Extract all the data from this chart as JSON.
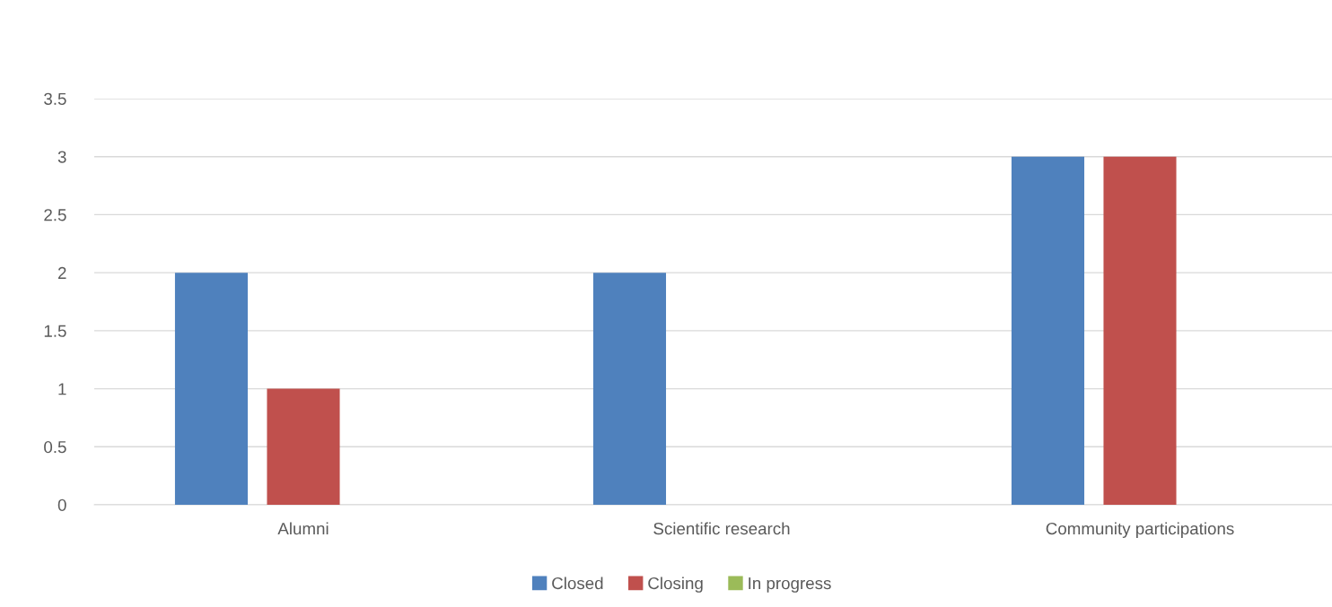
{
  "chart_data": {
    "type": "bar",
    "categories": [
      "Alumni",
      "Scientific research",
      "Community participations"
    ],
    "series": [
      {
        "name": "Closed",
        "color": "#4f81bd",
        "values": [
          2,
          2,
          3
        ]
      },
      {
        "name": "Closing",
        "color": "#c0504d",
        "values": [
          1,
          0,
          3
        ]
      },
      {
        "name": "In progress",
        "color": "#9bbb59",
        "values": [
          0,
          0,
          0
        ]
      }
    ],
    "ylim": [
      0,
      3.5
    ],
    "yticks": [
      0,
      0.5,
      1,
      1.5,
      2,
      2.5,
      3,
      3.5
    ],
    "grid": "y",
    "legend": "bottom"
  }
}
